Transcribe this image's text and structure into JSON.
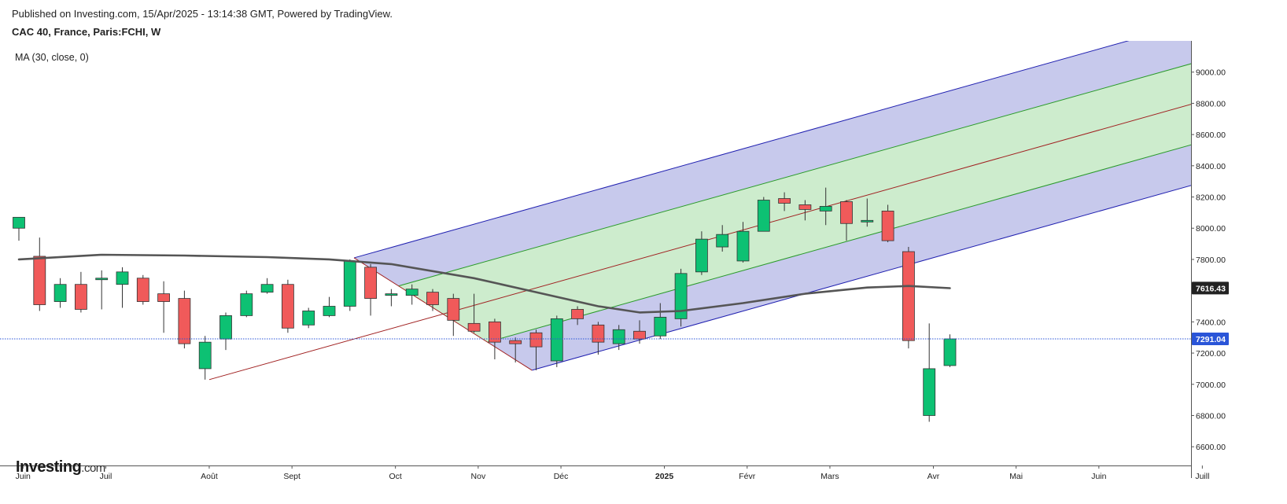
{
  "header": {
    "published": "Published on Investing.com, 15/Apr/2025 - 13:14:38 GMT, Powered by TradingView.",
    "symbol": "CAC 40, France, Paris:FCHI, W",
    "indicator": "MA (30, close, 0)"
  },
  "logo": {
    "name": "Investing",
    "suffix": ".com"
  },
  "colors": {
    "up": "#0dc173",
    "down": "#f05a5a",
    "ma": "#555555",
    "channel_outer_fill": "#c7c9ec",
    "channel_inner_fill": "#cdeccd",
    "channel_outer_line": "#2020b0",
    "channel_inner_line": "#2a9a2a",
    "median_line": "#a02020",
    "price_line": "#2a55d8",
    "ma_label_bg": "#222222"
  },
  "chart_data": {
    "type": "candlestick",
    "timeframe": "W",
    "ylim": [
      6480,
      9200
    ],
    "y_ticks": [
      6600,
      6800,
      7000,
      7200,
      7400,
      7600,
      7800,
      8000,
      8200,
      8400,
      8600,
      8800,
      9000
    ],
    "y_tick_labels": [
      "6600.00",
      "6800.00",
      "7000.00",
      "7200.00",
      "7400.00",
      "7600.00",
      "7800.00",
      "8000.00",
      "8200.00",
      "8400.00",
      "8600.00",
      "8800.00",
      "9000.00"
    ],
    "x_labels": [
      {
        "label": "Juin",
        "at": 0.2
      },
      {
        "label": "Juil",
        "at": 4.2
      },
      {
        "label": "Août",
        "at": 9.2
      },
      {
        "label": "Sept",
        "at": 13.2
      },
      {
        "label": "Oct",
        "at": 18.2
      },
      {
        "label": "Nov",
        "at": 22.2
      },
      {
        "label": "Déc",
        "at": 26.2
      },
      {
        "label": "2025",
        "at": 31.2,
        "bold": true
      },
      {
        "label": "Févr",
        "at": 35.2
      },
      {
        "label": "Mars",
        "at": 39.2
      },
      {
        "label": "Avr",
        "at": 44.2
      },
      {
        "label": "Mai",
        "at": 48.2
      },
      {
        "label": "Juin",
        "at": 52.2
      },
      {
        "label": "Juill",
        "at": 57.2
      }
    ],
    "candles": [
      {
        "o": 8000,
        "h": 8070,
        "l": 7920,
        "c": 8070
      },
      {
        "o": 7820,
        "h": 7940,
        "l": 7470,
        "c": 7510
      },
      {
        "o": 7530,
        "h": 7680,
        "l": 7490,
        "c": 7640
      },
      {
        "o": 7640,
        "h": 7720,
        "l": 7460,
        "c": 7480
      },
      {
        "o": 7670,
        "h": 7730,
        "l": 7480,
        "c": 7680
      },
      {
        "o": 7640,
        "h": 7750,
        "l": 7490,
        "c": 7720
      },
      {
        "o": 7680,
        "h": 7700,
        "l": 7510,
        "c": 7530
      },
      {
        "o": 7580,
        "h": 7660,
        "l": 7330,
        "c": 7530
      },
      {
        "o": 7550,
        "h": 7600,
        "l": 7230,
        "c": 7260
      },
      {
        "o": 7100,
        "h": 7310,
        "l": 7030,
        "c": 7270
      },
      {
        "o": 7290,
        "h": 7460,
        "l": 7220,
        "c": 7440
      },
      {
        "o": 7440,
        "h": 7600,
        "l": 7430,
        "c": 7580
      },
      {
        "o": 7590,
        "h": 7680,
        "l": 7580,
        "c": 7640
      },
      {
        "o": 7640,
        "h": 7670,
        "l": 7330,
        "c": 7360
      },
      {
        "o": 7380,
        "h": 7490,
        "l": 7360,
        "c": 7470
      },
      {
        "o": 7440,
        "h": 7560,
        "l": 7430,
        "c": 7500
      },
      {
        "o": 7500,
        "h": 7800,
        "l": 7470,
        "c": 7790
      },
      {
        "o": 7750,
        "h": 7770,
        "l": 7440,
        "c": 7550
      },
      {
        "o": 7570,
        "h": 7610,
        "l": 7500,
        "c": 7580
      },
      {
        "o": 7570,
        "h": 7640,
        "l": 7510,
        "c": 7610
      },
      {
        "o": 7590,
        "h": 7610,
        "l": 7470,
        "c": 7510
      },
      {
        "o": 7550,
        "h": 7580,
        "l": 7310,
        "c": 7410
      },
      {
        "o": 7390,
        "h": 7580,
        "l": 7330,
        "c": 7340
      },
      {
        "o": 7400,
        "h": 7420,
        "l": 7160,
        "c": 7270
      },
      {
        "o": 7280,
        "h": 7300,
        "l": 7140,
        "c": 7260
      },
      {
        "o": 7330,
        "h": 7350,
        "l": 7090,
        "c": 7240
      },
      {
        "o": 7150,
        "h": 7440,
        "l": 7110,
        "c": 7420
      },
      {
        "o": 7480,
        "h": 7500,
        "l": 7380,
        "c": 7420
      },
      {
        "o": 7380,
        "h": 7400,
        "l": 7190,
        "c": 7270
      },
      {
        "o": 7260,
        "h": 7380,
        "l": 7220,
        "c": 7350
      },
      {
        "o": 7340,
        "h": 7410,
        "l": 7260,
        "c": 7290
      },
      {
        "o": 7310,
        "h": 7520,
        "l": 7290,
        "c": 7430
      },
      {
        "o": 7420,
        "h": 7740,
        "l": 7370,
        "c": 7710
      },
      {
        "o": 7720,
        "h": 7980,
        "l": 7700,
        "c": 7930
      },
      {
        "o": 7880,
        "h": 8020,
        "l": 7850,
        "c": 7960
      },
      {
        "o": 7790,
        "h": 8040,
        "l": 7780,
        "c": 7980
      },
      {
        "o": 7980,
        "h": 8200,
        "l": 7980,
        "c": 8180
      },
      {
        "o": 8190,
        "h": 8230,
        "l": 8110,
        "c": 8160
      },
      {
        "o": 8150,
        "h": 8180,
        "l": 8050,
        "c": 8120
      },
      {
        "o": 8110,
        "h": 8260,
        "l": 8020,
        "c": 8140
      },
      {
        "o": 8170,
        "h": 8180,
        "l": 7920,
        "c": 8030
      },
      {
        "o": 8040,
        "h": 8190,
        "l": 8010,
        "c": 8050
      },
      {
        "o": 8110,
        "h": 8150,
        "l": 7910,
        "c": 7920
      },
      {
        "o": 7850,
        "h": 7880,
        "l": 7230,
        "c": 7280
      },
      {
        "o": 6800,
        "h": 7390,
        "l": 6760,
        "c": 7100
      },
      {
        "o": 7120,
        "h": 7320,
        "l": 7110,
        "c": 7291.04
      }
    ],
    "moving_average": {
      "name": "MA (30, close, 0)",
      "last_value": 7616.43,
      "last_label": "7616.43",
      "points": [
        [
          0,
          7800
        ],
        [
          4,
          7830
        ],
        [
          8,
          7825
        ],
        [
          12,
          7815
        ],
        [
          15,
          7800
        ],
        [
          18,
          7770
        ],
        [
          22,
          7680
        ],
        [
          25,
          7590
        ],
        [
          28,
          7500
        ],
        [
          30,
          7460
        ],
        [
          32,
          7470
        ],
        [
          35,
          7520
        ],
        [
          38,
          7580
        ],
        [
          41,
          7620
        ],
        [
          43,
          7630
        ],
        [
          45,
          7616
        ]
      ]
    },
    "last_price": {
      "value": 7291.04,
      "label": "7291.04"
    },
    "pitchfork": {
      "pivot_a": [
        9.2,
        7030
      ],
      "pivot_b": [
        16.2,
        7810
      ],
      "pivot_c": [
        24.8,
        7090
      ],
      "inner_fraction": 0.5,
      "extend_to": 58.7
    }
  }
}
